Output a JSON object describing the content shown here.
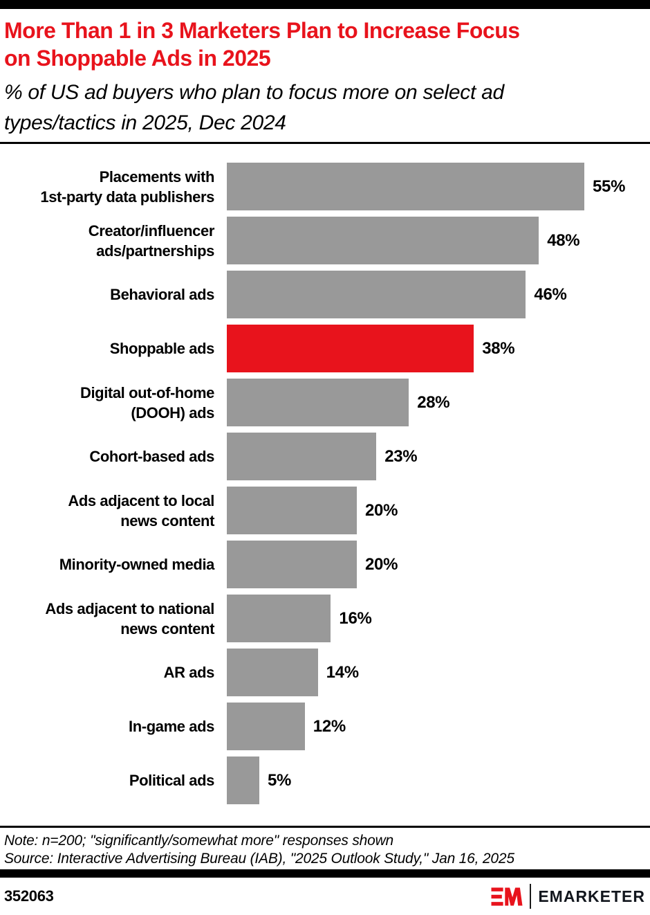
{
  "page": {
    "accent_red": "#e8131c",
    "bar_gray": "#999999",
    "bar_black": "#000000"
  },
  "header": {
    "title": "More Than 1 in 3 Marketers Plan to Increase Focus\non Shoppable Ads in 2025",
    "subtitle": "% of US ad buyers who plan to focus more on select ad\ntypes/tactics in 2025, Dec 2024"
  },
  "chart_data": {
    "type": "bar",
    "orientation": "horizontal",
    "title": "More Than 1 in 3 Marketers Plan to Increase Focus on Shoppable Ads in 2025",
    "subtitle": "% of US ad buyers who plan to focus more on select ad types/tactics in 2025, Dec 2024",
    "unit": "%",
    "axis_shown": false,
    "xlim": [
      0,
      65
    ],
    "grid": false,
    "legend": "none",
    "categories": [
      "Placements with\n1st-party data publishers",
      "Creator/influencer\nads/partnerships",
      "Behavioral ads",
      "Shoppable ads",
      "Digital out-of-home\n(DOOH) ads",
      "Cohort-based ads",
      "Ads adjacent to local\nnews content",
      "Minority-owned media",
      "Ads adjacent to national\nnews content",
      "AR ads",
      "In-game ads",
      "Political ads"
    ],
    "values": [
      55,
      48,
      46,
      38,
      28,
      23,
      20,
      20,
      16,
      14,
      12,
      5
    ],
    "value_labels": [
      "55%",
      "48%",
      "46%",
      "38%",
      "28%",
      "23%",
      "20%",
      "20%",
      "16%",
      "14%",
      "12%",
      "5%"
    ],
    "highlight_index": 3,
    "bar_colors": {
      "default": "#999999",
      "highlight": "#e8131c"
    }
  },
  "footnotes": {
    "note": "Note: n=200; \"significantly/somewhat more\" responses shown",
    "source": "Source: Interactive Advertising Bureau (IAB), \"2025 Outlook Study,\" Jan 16, 2025"
  },
  "footer": {
    "chart_id": "352063",
    "logo_wordmark": "EMARKETER"
  }
}
